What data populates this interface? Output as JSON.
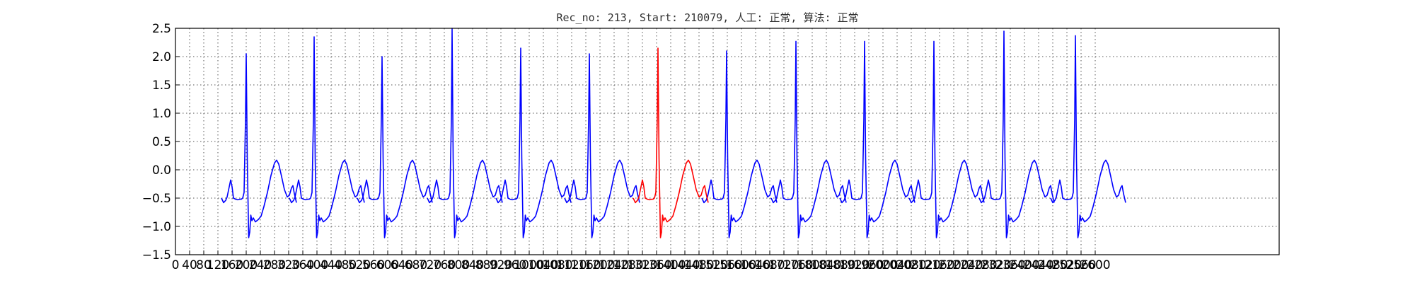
{
  "chart_data": {
    "type": "line",
    "title": "Rec_no: 213, Start: 210079, 人工: 正常, 算法: 正常",
    "xlabel": "",
    "ylabel": "",
    "ylim": [
      -1.5,
      2.5
    ],
    "xlim": [
      0,
      3120
    ],
    "grid": true,
    "yticks": [
      2.5,
      2.0,
      1.5,
      1.0,
      0.5,
      0.0,
      -0.5,
      -1.0,
      -1.5
    ],
    "ytick_labels": [
      "2.5",
      "2.0",
      "1.5",
      "1.0",
      "0.5",
      "0.0",
      "−0.5",
      "−1.0",
      "−1.5"
    ],
    "xticks": [
      0,
      40,
      80,
      120,
      160,
      200,
      240,
      280,
      320,
      360,
      400,
      440,
      480,
      520,
      560,
      600,
      640,
      680,
      720,
      760,
      800,
      840,
      880,
      920,
      960,
      1000,
      1040,
      1080,
      1120,
      1160,
      1200,
      1240,
      1280,
      1320,
      1360,
      1400,
      1440,
      1480,
      1520,
      1560,
      1600,
      1640,
      1680,
      1720,
      1760,
      1800,
      1840,
      1880,
      1920,
      1960,
      2000,
      2040,
      2080,
      2120,
      2160,
      2200,
      2240,
      2280,
      2320,
      2360,
      2400,
      2440,
      2480,
      2520,
      2560,
      2600
    ],
    "colors": {
      "normal": "#0000ff",
      "highlight": "#ff0000",
      "grid": "#555555"
    },
    "beat_template": [
      [
        0,
        -0.5
      ],
      [
        6,
        -0.58
      ],
      [
        12,
        -0.54
      ],
      [
        16,
        -0.48
      ],
      [
        22,
        -0.3
      ],
      [
        26,
        -0.18
      ],
      [
        30,
        -0.3
      ],
      [
        34,
        -0.5
      ],
      [
        40,
        -0.52
      ],
      [
        46,
        -0.53
      ],
      [
        52,
        -0.52
      ],
      [
        56,
        -0.52
      ],
      [
        60,
        -0.5
      ],
      [
        64,
        -0.4
      ],
      [
        68,
        0.9
      ],
      [
        70,
        2.1
      ],
      [
        73,
        0.2
      ],
      [
        77,
        -1.2
      ],
      [
        80,
        -1.1
      ],
      [
        83,
        -0.8
      ],
      [
        86,
        -0.9
      ],
      [
        90,
        -0.85
      ],
      [
        96,
        -0.92
      ],
      [
        104,
        -0.88
      ],
      [
        112,
        -0.82
      ],
      [
        120,
        -0.65
      ],
      [
        130,
        -0.4
      ],
      [
        140,
        -0.1
      ],
      [
        150,
        0.12
      ],
      [
        156,
        0.17
      ],
      [
        162,
        0.1
      ],
      [
        170,
        -0.12
      ],
      [
        178,
        -0.35
      ],
      [
        186,
        -0.48
      ],
      [
        192,
        -0.45
      ],
      [
        198,
        -0.32
      ],
      [
        202,
        -0.28
      ],
      [
        206,
        -0.42
      ],
      [
        212,
        -0.58
      ]
    ],
    "series": [
      {
        "color": "#0000ff",
        "segments": [
          {
            "beat_start": 130,
            "amp": 2.05,
            "rate": 1.0
          },
          {
            "beat_start": 322,
            "amp": 2.35,
            "rate": 1.0
          },
          {
            "beat_start": 514,
            "amp": 2.0,
            "rate": 1.0
          },
          {
            "beat_start": 712,
            "amp": 2.5,
            "rate": 1.0
          },
          {
            "beat_start": 906,
            "amp": 2.15,
            "rate": 1.0
          },
          {
            "beat_start": 1100,
            "amp": 2.05,
            "rate": 1.0
          },
          {
            "beat_start": 1488,
            "amp": 2.1,
            "rate": 1.0
          },
          {
            "beat_start": 1684,
            "amp": 2.27,
            "rate": 1.0
          },
          {
            "beat_start": 1878,
            "amp": 2.27,
            "rate": 1.0
          },
          {
            "beat_start": 2074,
            "amp": 2.27,
            "rate": 1.0
          },
          {
            "beat_start": 2272,
            "amp": 2.45,
            "rate": 1.0
          },
          {
            "beat_start": 2474,
            "amp": 2.37,
            "rate": 1.0
          }
        ]
      },
      {
        "color": "#ff0000",
        "segments": [
          {
            "beat_start": 1294,
            "amp": 2.15,
            "rate": 1.0
          }
        ]
      }
    ]
  }
}
